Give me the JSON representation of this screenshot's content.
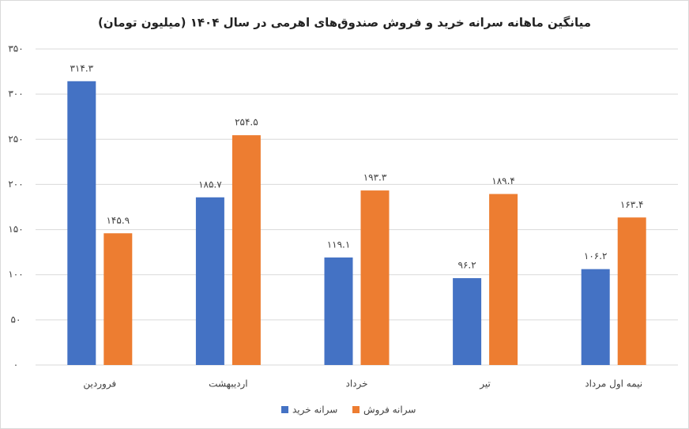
{
  "chart_data": {
    "type": "bar",
    "title": "میانگین ماهانه سرانه خرید و فروش صندوق‌های اهرمی در سال ۱۴۰۴ (میلیون تومان)",
    "categories": [
      "فروردین",
      "اردیبهشت",
      "خرداد",
      "تیر",
      "نیمه اول مرداد"
    ],
    "series": [
      {
        "name": "سرانه خرید",
        "color": "#4472c4",
        "values": [
          314.3,
          185.7,
          119.1,
          96.2,
          106.2
        ],
        "value_labels": [
          "۳۱۴.۳",
          "۱۸۵.۷",
          "۱۱۹.۱",
          "۹۶.۲",
          "۱۰۶.۲"
        ]
      },
      {
        "name": "سرانه فروش",
        "color": "#ed7d31",
        "values": [
          145.9,
          254.5,
          193.3,
          189.4,
          163.4
        ],
        "value_labels": [
          "۱۴۵.۹",
          "۲۵۴.۵",
          "۱۹۳.۳",
          "۱۸۹.۴",
          "۱۶۳.۴"
        ]
      }
    ],
    "ylim": [
      0,
      350
    ],
    "yticks": [
      {
        "value": 0,
        "label": "۰"
      },
      {
        "value": 50,
        "label": "۵۰"
      },
      {
        "value": 100,
        "label": "۱۰۰"
      },
      {
        "value": 150,
        "label": "۱۵۰"
      },
      {
        "value": 200,
        "label": "۲۰۰"
      },
      {
        "value": 250,
        "label": "۲۵۰"
      },
      {
        "value": 300,
        "label": "۳۰۰"
      },
      {
        "value": 350,
        "label": "۳۵۰"
      }
    ],
    "grid": true
  }
}
